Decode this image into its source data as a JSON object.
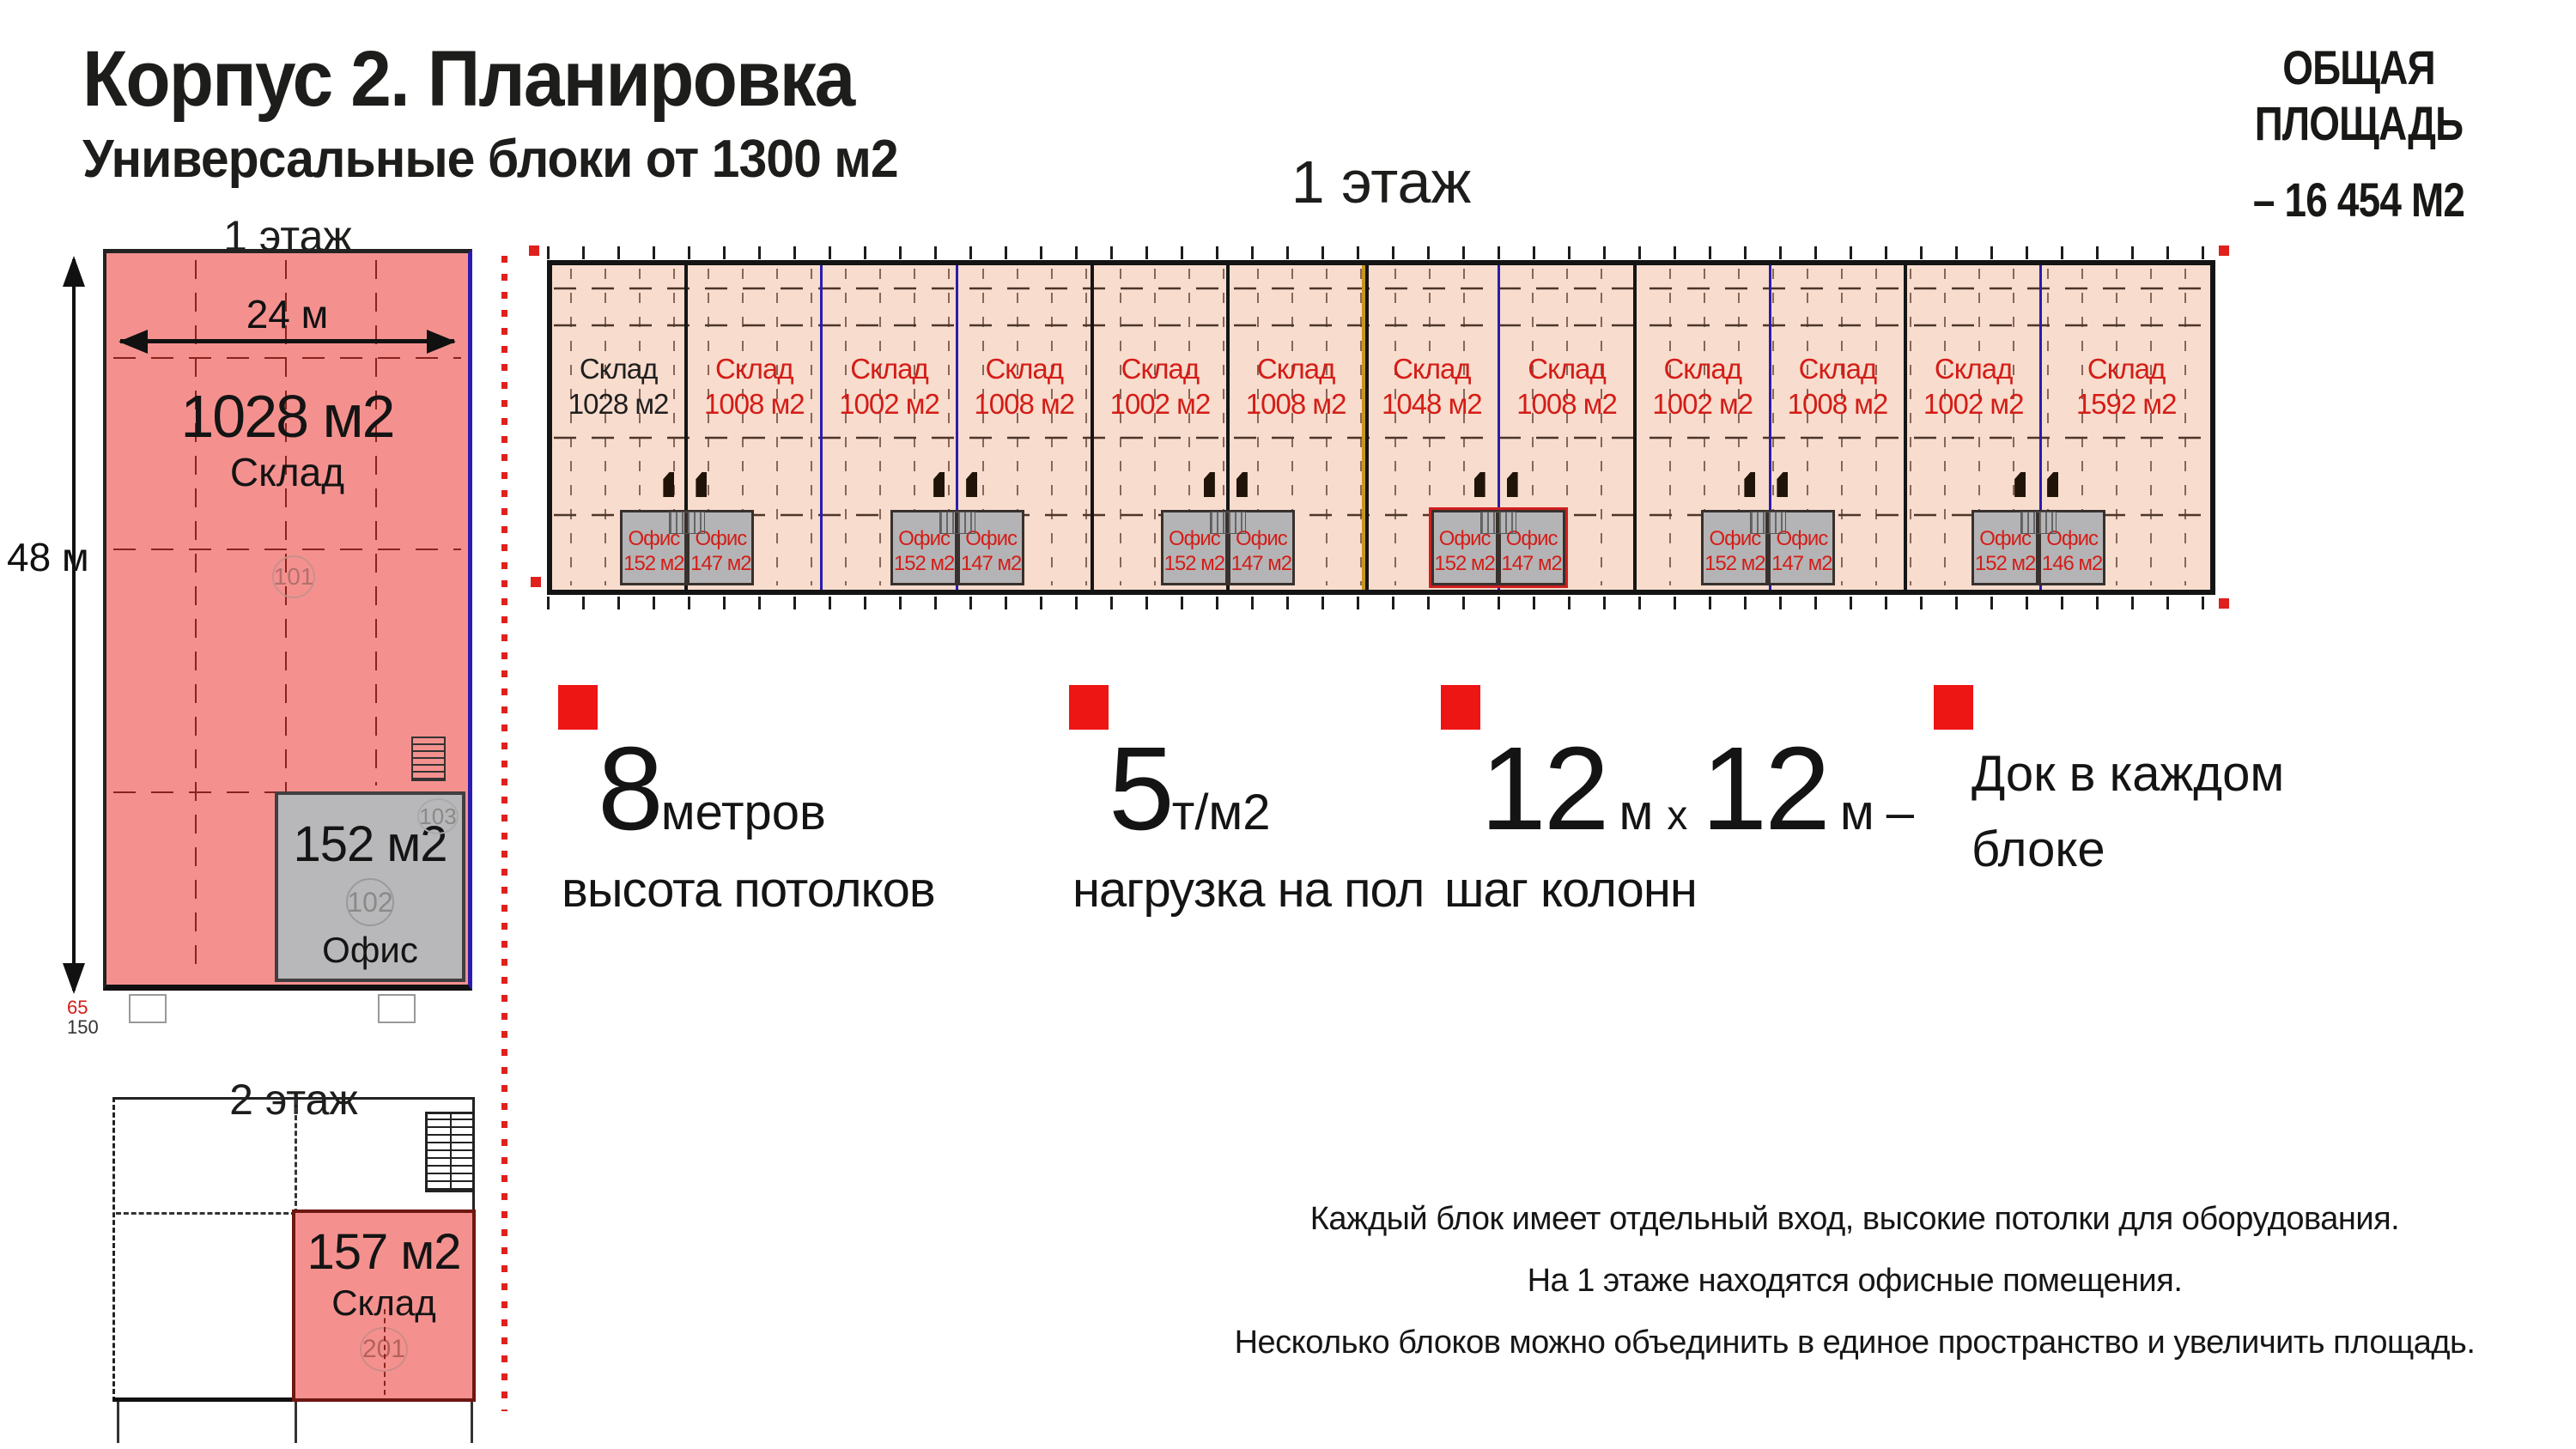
{
  "header": {
    "title": "Корпус 2. Планировка",
    "subtitle": "Универсальные блоки от 1300 м2"
  },
  "total_area": {
    "line1": "ОБЩАЯ ПЛОЩАДЬ",
    "line2": "– 16 454 М2"
  },
  "floor1_left": {
    "title": "1 этаж",
    "width_dim": "24 м",
    "height_dim": "48 м",
    "warehouse_area": "1028 м2",
    "warehouse_label": "Склад",
    "warehouse_room": "101",
    "office_area": "152 м2",
    "office_label": "Офис",
    "office_room": "102",
    "office_room_upper": "103",
    "note_red": "65",
    "note_black": "150"
  },
  "floor1_long": {
    "title": "1 этаж",
    "blocks": [
      {
        "label": "Склад",
        "area": "1028 м2",
        "text_dark": true,
        "sep": "black"
      },
      {
        "label": "Склад",
        "area": "1008 м2",
        "sep": "blue"
      },
      {
        "label": "Склад",
        "area": "1002 м2",
        "sep": "blue"
      },
      {
        "label": "Склад",
        "area": "1008 м2",
        "sep": "black"
      },
      {
        "label": "Склад",
        "area": "1002 м2",
        "sep": "black"
      },
      {
        "label": "Склад",
        "area": "1008 м2",
        "sep": "orange"
      },
      {
        "label": "Склад",
        "area": "1048 м2",
        "sep": "blue"
      },
      {
        "label": "Склад",
        "area": "1008 м2",
        "sep": "black"
      },
      {
        "label": "Склад",
        "area": "1002 м2",
        "sep": "blue"
      },
      {
        "label": "Склад",
        "area": "1008 м2",
        "sep": "black"
      },
      {
        "label": "Склад",
        "area": "1002 м2",
        "sep": "blue"
      },
      {
        "label": "Склад",
        "area": "1592 м2",
        "sep": "none",
        "wide": true
      }
    ],
    "offices": [
      {
        "left_label": "Офис",
        "left_area": "152 м2",
        "right_label": "Офис",
        "right_area": "147 м2",
        "at": 1
      },
      {
        "left_label": "Офис",
        "left_area": "152 м2",
        "right_label": "Офис",
        "right_area": "147 м2",
        "at": 3
      },
      {
        "left_label": "Офис",
        "left_area": "152 м2",
        "right_label": "Офис",
        "right_area": "147 м2",
        "at": 5
      },
      {
        "left_label": "Офис",
        "left_area": "152 м2",
        "right_label": "Офис",
        "right_area": "147 м2",
        "at": 7,
        "highlight": true
      },
      {
        "left_label": "Офис",
        "left_area": "152 м2",
        "right_label": "Офис",
        "right_area": "147 м2",
        "at": 9
      },
      {
        "left_label": "Офис",
        "left_area": "152 м2",
        "right_label": "Офис",
        "right_area": "146 м2",
        "at": 11
      }
    ]
  },
  "floor2": {
    "title": "2 этаж",
    "warehouse_area": "157 м2",
    "warehouse_label": "Склад",
    "warehouse_room": "201"
  },
  "features": {
    "f1": {
      "num": "8",
      "unit": "метров",
      "desc": "высота потолков"
    },
    "f2": {
      "num": "5",
      "unit": "т/м2",
      "desc": "нагрузка на пол"
    },
    "f3": {
      "num1": "12",
      "unit1": "м",
      "times": "х",
      "num2": "12",
      "unit2": "м",
      "dash": "–",
      "desc": "шаг колонн"
    },
    "f4": {
      "line1": "Док в каждом",
      "line2": "блоке"
    }
  },
  "notes": [
    "Каждый блок имеет отдельный вход, высокие потолки для оборудования.",
    "На 1 этаже находятся офисные помещения.",
    "Несколько блоков можно объединить в единое пространство и увеличить площадь."
  ],
  "colors": {
    "accent_red": "#ee1515",
    "text_red": "#d31d17",
    "plan_fill_light": "#f8dccd",
    "plan_fill_salmon": "#f4918f",
    "office_gray": "#b4b4b6",
    "line_blue": "#2a1caf",
    "line_orange": "#c8951d"
  }
}
